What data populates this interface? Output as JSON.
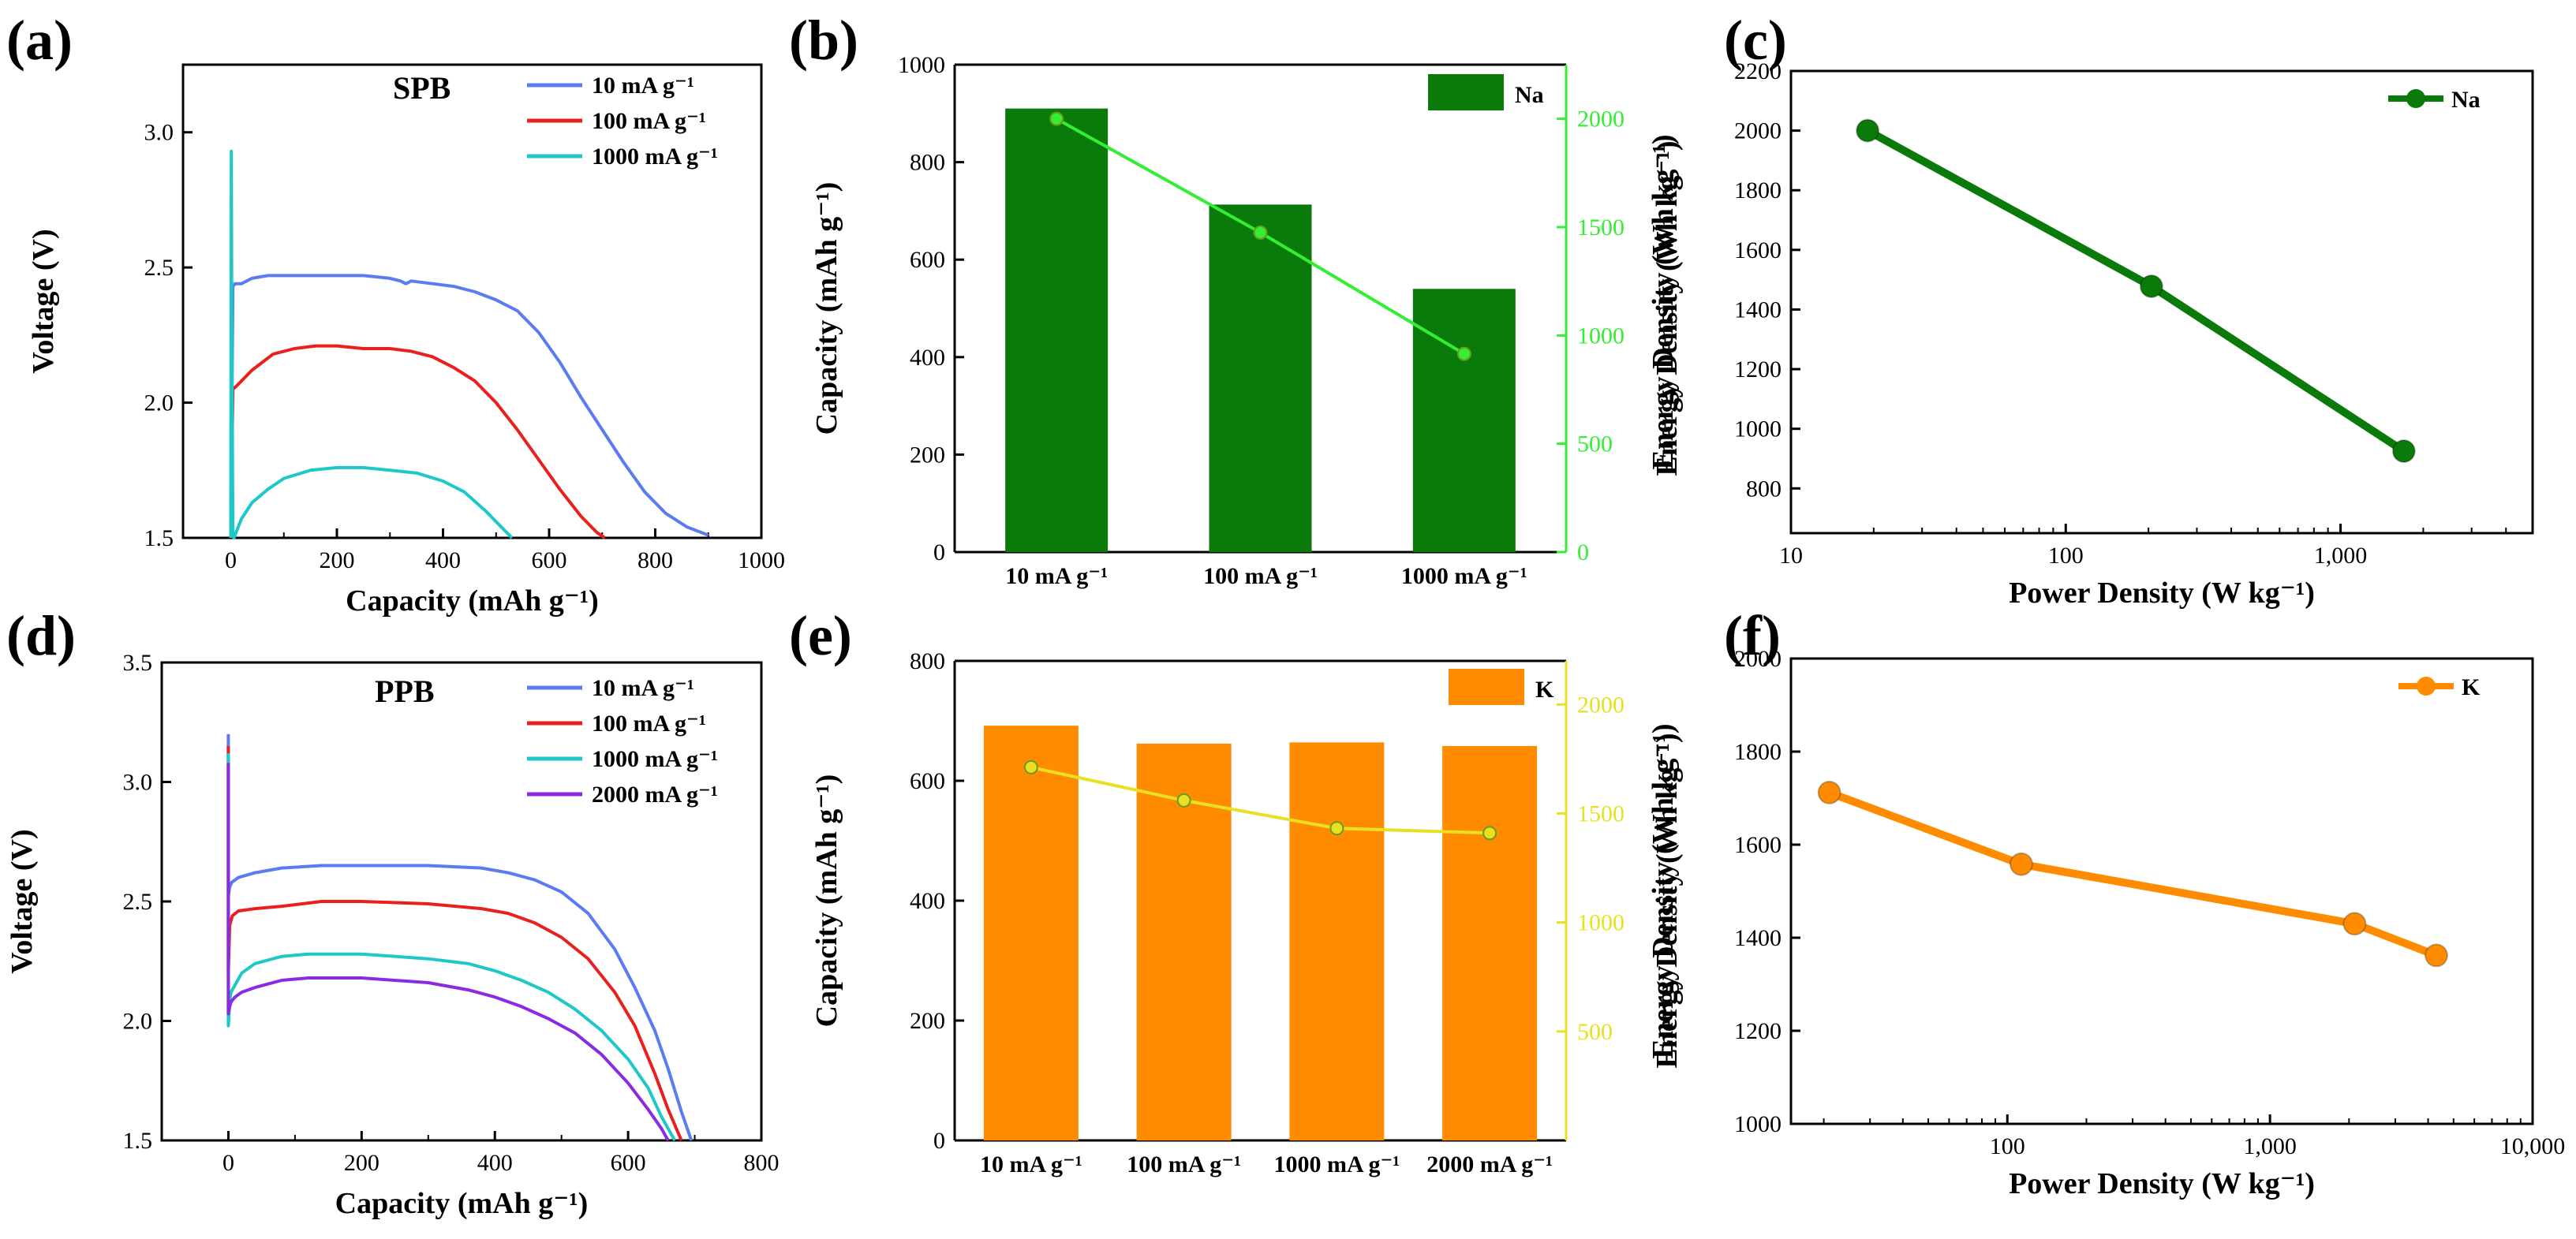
{
  "chart_data": [
    {
      "panel": "(a)",
      "type": "line",
      "annotation": "SPB",
      "xlabel": "Capacity (mAh g⁻¹)",
      "ylabel": "Voltage (V)",
      "xlim": [
        -90,
        1000
      ],
      "ylim": [
        1.5,
        3.25
      ],
      "xticks": [
        0,
        200,
        400,
        600,
        800,
        1000
      ],
      "xtick_labels": [
        "0",
        "200",
        "400",
        "600",
        "800",
        "1000"
      ],
      "yticks": [
        1.5,
        2.0,
        2.5,
        3.0
      ],
      "ytick_labels": [
        "1.5",
        "2.0",
        "2.5",
        "3.0"
      ],
      "series": [
        {
          "name": "10 mA g⁻¹",
          "color": "#5a7cf0",
          "x": [
            0,
            4,
            8,
            20,
            40,
            70,
            100,
            150,
            200,
            250,
            300,
            320,
            330,
            340,
            380,
            420,
            460,
            500,
            540,
            580,
            620,
            660,
            700,
            740,
            780,
            820,
            860,
            900
          ],
          "y": [
            1.5,
            2.43,
            2.44,
            2.44,
            2.46,
            2.47,
            2.47,
            2.47,
            2.47,
            2.47,
            2.46,
            2.45,
            2.44,
            2.45,
            2.44,
            2.43,
            2.41,
            2.38,
            2.34,
            2.26,
            2.15,
            2.02,
            1.9,
            1.78,
            1.67,
            1.59,
            1.54,
            1.51
          ]
        },
        {
          "name": "100 mA g⁻¹",
          "color": "#e8211f",
          "x": [
            0,
            4,
            10,
            20,
            40,
            80,
            120,
            160,
            200,
            250,
            300,
            340,
            380,
            420,
            460,
            500,
            540,
            580,
            620,
            660,
            690,
            705
          ],
          "y": [
            1.5,
            2.05,
            2.06,
            2.08,
            2.12,
            2.18,
            2.2,
            2.21,
            2.21,
            2.2,
            2.2,
            2.19,
            2.17,
            2.13,
            2.08,
            2.0,
            1.9,
            1.79,
            1.68,
            1.58,
            1.52,
            1.5
          ]
        },
        {
          "name": "1000 mA g⁻¹",
          "color": "#1ec8c8",
          "x": [
            0,
            1,
            2,
            4,
            6,
            10,
            20,
            40,
            70,
            100,
            150,
            200,
            250,
            300,
            350,
            400,
            440,
            480,
            510,
            530
          ],
          "y": [
            1.5,
            2.93,
            2.2,
            1.52,
            1.5,
            1.52,
            1.57,
            1.63,
            1.68,
            1.72,
            1.75,
            1.76,
            1.76,
            1.75,
            1.74,
            1.71,
            1.67,
            1.6,
            1.54,
            1.5
          ]
        }
      ]
    },
    {
      "panel": "(b)",
      "type": "bar",
      "categories": [
        "10 mA g⁻¹",
        "100 mA g⁻¹",
        "1000 mA g⁻¹"
      ],
      "values": [
        910,
        713,
        540
      ],
      "bar_color": "#0a7a0a",
      "legend": "Na",
      "ylabel": "Capacity (mAh g⁻¹)",
      "ylim": [
        0,
        1000
      ],
      "yticks": [
        0,
        200,
        400,
        600,
        800,
        1000
      ],
      "ytick_labels": [
        "0",
        "200",
        "400",
        "600",
        "800",
        "1000"
      ],
      "y2label": "Energy Density (Wh kg⁻¹)",
      "y2lim": [
        0,
        2250
      ],
      "y2ticks": [
        0,
        500,
        1000,
        1500,
        2000
      ],
      "y2tick_labels": [
        "0",
        "500",
        "1000",
        "1500",
        "2000"
      ],
      "y2_color": "#33ee33",
      "line_values": [
        2000,
        1475,
        915
      ]
    },
    {
      "panel": "(c)",
      "type": "line",
      "xscale": "log",
      "xlabel": "Power Density (W kg⁻¹)",
      "ylabel": "Energy Density (Wh kg⁻¹)",
      "xlim": [
        10,
        5000
      ],
      "ylim": [
        650,
        2200
      ],
      "xticks": [
        10,
        100,
        1000
      ],
      "xtick_labels": [
        "10",
        "100",
        "1,000"
      ],
      "yticks": [
        800,
        1000,
        1200,
        1400,
        1600,
        1800,
        2000,
        2200
      ],
      "ytick_labels": [
        "800",
        "1000",
        "1200",
        "1400",
        "1600",
        "1800",
        "2000",
        "2200"
      ],
      "series": [
        {
          "name": "Na",
          "color": "#0a7a0a",
          "x": [
            19,
            205,
            1700
          ],
          "y": [
            2000,
            1478,
            925
          ]
        }
      ]
    },
    {
      "panel": "(d)",
      "type": "line",
      "annotation": "PPB",
      "xlabel": "Capacity (mAh g⁻¹)",
      "ylabel": "Voltage (V)",
      "xlim": [
        -100,
        800
      ],
      "ylim": [
        1.5,
        3.5
      ],
      "xticks": [
        0,
        200,
        400,
        600,
        800
      ],
      "xtick_labels": [
        "0",
        "200",
        "400",
        "600",
        "800"
      ],
      "yticks": [
        1.5,
        2.0,
        2.5,
        3.0,
        3.5
      ],
      "ytick_labels": [
        "1.5",
        "2.0",
        "2.5",
        "3.0",
        "3.5"
      ],
      "series": [
        {
          "name": "10 mA g⁻¹",
          "color": "#5a7cf0",
          "x": [
            0,
            0,
            2,
            5,
            15,
            40,
            80,
            140,
            200,
            300,
            380,
            420,
            460,
            500,
            540,
            580,
            610,
            640,
            660,
            680,
            695
          ],
          "y": [
            3.2,
            2.52,
            2.56,
            2.58,
            2.6,
            2.62,
            2.64,
            2.65,
            2.65,
            2.65,
            2.64,
            2.62,
            2.59,
            2.54,
            2.45,
            2.3,
            2.14,
            1.96,
            1.8,
            1.62,
            1.5
          ]
        },
        {
          "name": "100 mA g⁻¹",
          "color": "#e8211f",
          "x": [
            0,
            0,
            2,
            6,
            15,
            40,
            80,
            140,
            200,
            300,
            380,
            420,
            460,
            500,
            540,
            580,
            610,
            640,
            660,
            680
          ],
          "y": [
            3.15,
            2.2,
            2.4,
            2.44,
            2.46,
            2.47,
            2.48,
            2.5,
            2.5,
            2.49,
            2.47,
            2.45,
            2.41,
            2.35,
            2.26,
            2.12,
            1.98,
            1.78,
            1.63,
            1.5
          ]
        },
        {
          "name": "1000 mA g⁻¹",
          "color": "#1ec8c8",
          "x": [
            0,
            0,
            2,
            4,
            10,
            20,
            40,
            80,
            120,
            200,
            300,
            360,
            400,
            440,
            480,
            520,
            560,
            600,
            630,
            650,
            670
          ],
          "y": [
            3.12,
            1.98,
            2.08,
            2.12,
            2.15,
            2.2,
            2.24,
            2.27,
            2.28,
            2.28,
            2.26,
            2.24,
            2.21,
            2.17,
            2.12,
            2.05,
            1.96,
            1.84,
            1.72,
            1.6,
            1.5
          ]
        },
        {
          "name": "2000 mA g⁻¹",
          "color": "#8a2be2",
          "x": [
            0,
            0,
            2,
            4,
            10,
            20,
            40,
            80,
            120,
            200,
            300,
            360,
            400,
            440,
            480,
            520,
            560,
            600,
            630,
            650,
            660
          ],
          "y": [
            3.08,
            2.03,
            2.06,
            2.08,
            2.1,
            2.12,
            2.14,
            2.17,
            2.18,
            2.18,
            2.16,
            2.13,
            2.1,
            2.06,
            2.01,
            1.95,
            1.86,
            1.74,
            1.63,
            1.55,
            1.5
          ]
        }
      ]
    },
    {
      "panel": "(e)",
      "type": "bar",
      "categories": [
        "10 mA g⁻¹",
        "100 mA g⁻¹",
        "1000 mA g⁻¹",
        "2000 mA g⁻¹"
      ],
      "values": [
        692,
        662,
        664,
        658
      ],
      "bar_color": "#ff8c00",
      "legend": "K",
      "ylabel": "Capacity (mAh g⁻¹)",
      "ylim": [
        0,
        800
      ],
      "yticks": [
        0,
        200,
        400,
        600,
        800
      ],
      "ytick_labels": [
        "0",
        "200",
        "400",
        "600",
        "800"
      ],
      "y2label": "Energy Density (Wh kg⁻¹)",
      "y2lim": [
        0,
        2200
      ],
      "y2ticks": [
        500,
        1000,
        1500,
        2000
      ],
      "y2tick_labels": [
        "500",
        "1000",
        "1500",
        "2000"
      ],
      "y2_color": "#e8e020",
      "line_values": [
        1712,
        1560,
        1432,
        1410
      ]
    },
    {
      "panel": "(f)",
      "type": "line",
      "xscale": "log",
      "xlabel": "Power Density (W kg⁻¹)",
      "ylabel": "Energy Density (Wh kg⁻¹)",
      "xlim": [
        15,
        10000
      ],
      "ylim": [
        1000,
        2000
      ],
      "xticks": [
        100,
        1000,
        10000
      ],
      "xtick_labels": [
        "100",
        "1,000",
        "10,000"
      ],
      "yticks": [
        1000,
        1200,
        1400,
        1600,
        1800,
        2000
      ],
      "ytick_labels": [
        "1000",
        "1200",
        "1400",
        "1600",
        "1800",
        "2000"
      ],
      "series": [
        {
          "name": "K",
          "color": "#ff8c00",
          "x": [
            21,
            113,
            2100,
            4300
          ],
          "y": [
            1712,
            1558,
            1430,
            1362
          ]
        }
      ]
    }
  ]
}
